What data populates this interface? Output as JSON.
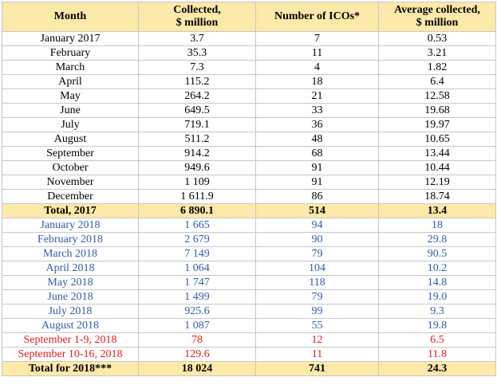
{
  "header": {
    "month": "Month",
    "collected_line1": "Collected,",
    "collected_line2": "$ million",
    "icos": "Number of ICOs*",
    "average_line1": "Average collected,",
    "average_line2": "$ million"
  },
  "rows": [
    {
      "month": "January 2017",
      "collected": "3.7",
      "icos": "7",
      "average": "0.53",
      "kind": "2017"
    },
    {
      "month": "February",
      "collected": "35.3",
      "icos": "11",
      "average": "3.21",
      "kind": "2017"
    },
    {
      "month": "March",
      "collected": "7.3",
      "icos": "4",
      "average": "1.82",
      "kind": "2017"
    },
    {
      "month": "April",
      "collected": "115.2",
      "icos": "18",
      "average": "6.4",
      "kind": "2017"
    },
    {
      "month": "May",
      "collected": "264.2",
      "icos": "21",
      "average": "12.58",
      "kind": "2017"
    },
    {
      "month": "June",
      "collected": "649.5",
      "icos": "33",
      "average": "19.68",
      "kind": "2017"
    },
    {
      "month": "July",
      "collected": "719.1",
      "icos": "36",
      "average": "19.97",
      "kind": "2017"
    },
    {
      "month": "August",
      "collected": "511.2",
      "icos": "48",
      "average": "10.65",
      "kind": "2017"
    },
    {
      "month": "September",
      "collected": "914.2",
      "icos": "68",
      "average": "13.44",
      "kind": "2017"
    },
    {
      "month": "October",
      "collected": "949.6",
      "icos": "91",
      "average": "10.44",
      "kind": "2017"
    },
    {
      "month": "November",
      "collected": "1 109",
      "icos": "91",
      "average": "12.19",
      "kind": "2017"
    },
    {
      "month": "December",
      "collected": "1 611.9",
      "icos": "86",
      "average": "18.74",
      "kind": "2017"
    },
    {
      "month": "Total, 2017",
      "collected": "6 890.1",
      "icos": "514",
      "average": "13.4",
      "kind": "total"
    },
    {
      "month": "January 2018",
      "collected": "1 665",
      "icos": "94",
      "average": "18",
      "kind": "2018"
    },
    {
      "month": "February 2018",
      "collected": "2 679",
      "icos": "90",
      "average": "29.8",
      "kind": "2018"
    },
    {
      "month": "March 2018",
      "collected": "7 149",
      "icos": "79",
      "average": "90.5",
      "kind": "2018"
    },
    {
      "month": "April 2018",
      "collected": "1 064",
      "icos": "104",
      "average": "10.2",
      "kind": "2018"
    },
    {
      "month": "May 2018",
      "collected": "1 747",
      "icos": "118",
      "average": "14.8",
      "kind": "2018"
    },
    {
      "month": "June 2018",
      "collected": "1 499",
      "icos": "79",
      "average": "19.0",
      "kind": "2018"
    },
    {
      "month": "July 2018",
      "collected": "925.6",
      "icos": "99",
      "average": "9.3",
      "kind": "2018"
    },
    {
      "month": "August 2018",
      "collected": "1 087",
      "icos": "55",
      "average": "19.8",
      "kind": "2018"
    },
    {
      "month": "September 1-9, 2018",
      "collected": "78",
      "icos": "12",
      "average": "6.5",
      "kind": "sep"
    },
    {
      "month": "September 10-16, 2018",
      "collected": "129.6",
      "icos": "11",
      "average": "11.8",
      "kind": "sep"
    },
    {
      "month": "Total for 2018***",
      "collected": "18 024",
      "icos": "741",
      "average": "24.3",
      "kind": "total"
    }
  ],
  "colors": {
    "header_bg": "#fde9a9",
    "text_2017": "#000000",
    "text_2018": "#2f5dab",
    "text_september": "#e21a1a"
  }
}
